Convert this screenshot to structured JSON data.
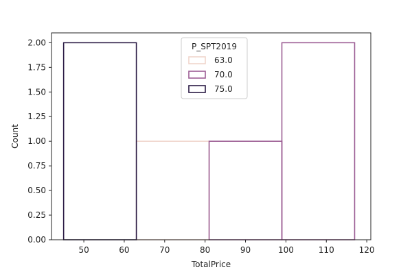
{
  "chart_data": {
    "type": "bar",
    "subtype": "step-histogram",
    "title": "",
    "xlabel": "TotalPrice",
    "ylabel": "Count",
    "xlim": [
      42,
      121
    ],
    "ylim": [
      0,
      2.1
    ],
    "xticks": [
      50,
      60,
      70,
      80,
      90,
      100,
      110,
      120
    ],
    "yticks": [
      0,
      0.25,
      0.5,
      0.75,
      1.0,
      1.25,
      1.5,
      1.75,
      2.0
    ],
    "grid": false,
    "legend": {
      "title": "P_SPT2019",
      "placement": "upper-center",
      "entries": [
        "63.0",
        "70.0",
        "75.0"
      ]
    },
    "series": [
      {
        "name": "63.0",
        "color": "#f0d5cc",
        "bins": [
          {
            "x0": 63,
            "x1": 81,
            "count": 1
          }
        ]
      },
      {
        "name": "70.0",
        "color": "#9c5d94",
        "bins": [
          {
            "x0": 81,
            "x1": 99,
            "count": 1
          },
          {
            "x0": 99,
            "x1": 117,
            "count": 2
          }
        ]
      },
      {
        "name": "75.0",
        "color": "#2a1a44",
        "bins": [
          {
            "x0": 45,
            "x1": 63,
            "count": 2
          }
        ]
      }
    ]
  }
}
